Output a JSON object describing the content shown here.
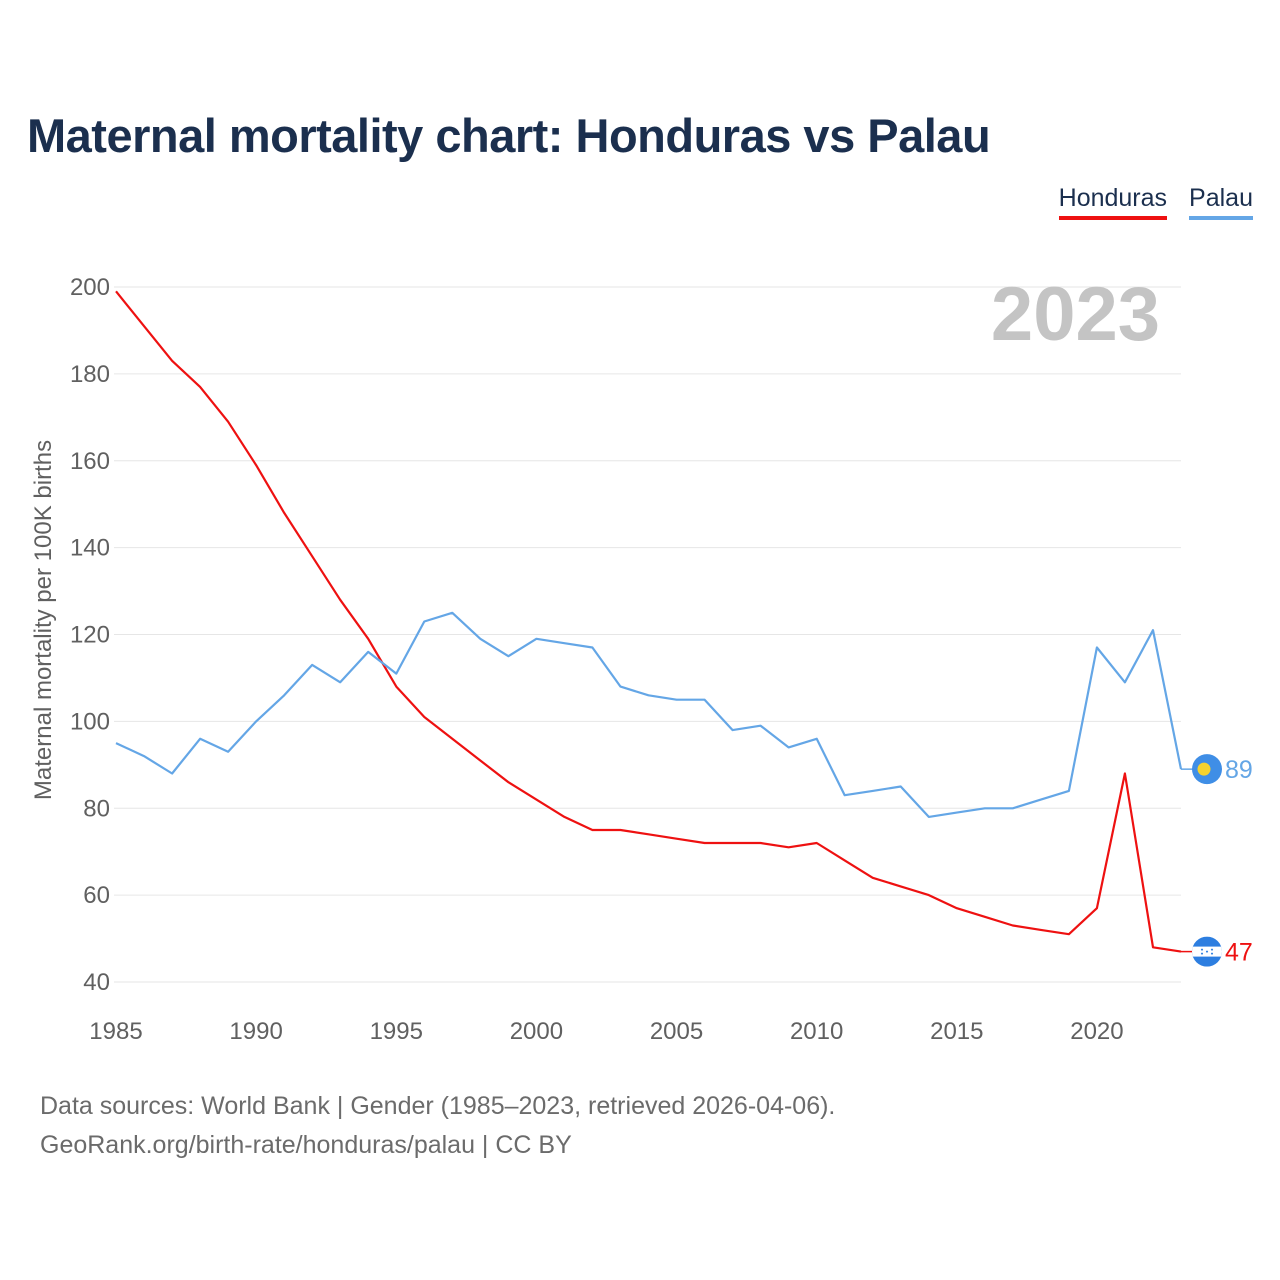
{
  "title": "Maternal mortality chart: Honduras vs Palau",
  "legend": [
    {
      "label": "Honduras",
      "color": "#ee1111"
    },
    {
      "label": "Palau",
      "color": "#64a6e6"
    }
  ],
  "footer": {
    "line1": "Data sources: World Bank | Gender (1985–2023, retrieved 2026-04-06).",
    "line2": "GeoRank.org/birth-rate/honduras/palau | CC BY"
  },
  "chart_data": {
    "type": "line",
    "title": "Maternal mortality chart: Honduras vs Palau",
    "ylabel": "Maternal mortality per 100K births",
    "xlabel": "",
    "year_label": "2023",
    "xlim": [
      1985,
      2023
    ],
    "ylim": [
      40,
      200
    ],
    "xticks": [
      1985,
      1990,
      1995,
      2000,
      2005,
      2010,
      2015,
      2020
    ],
    "yticks": [
      40,
      60,
      80,
      100,
      120,
      140,
      160,
      180,
      200
    ],
    "grid": true,
    "legend_position": "top-right",
    "x": [
      1985,
      1986,
      1987,
      1988,
      1989,
      1990,
      1991,
      1992,
      1993,
      1994,
      1995,
      1996,
      1997,
      1998,
      1999,
      2000,
      2001,
      2002,
      2003,
      2004,
      2005,
      2006,
      2007,
      2008,
      2009,
      2010,
      2011,
      2012,
      2013,
      2014,
      2015,
      2016,
      2017,
      2018,
      2019,
      2020,
      2021,
      2022,
      2023
    ],
    "series": [
      {
        "name": "Honduras",
        "color": "#ee1111",
        "end_label": "47",
        "values": [
          199,
          191,
          183,
          177,
          169,
          159,
          148,
          138,
          128,
          119,
          108,
          101,
          96,
          91,
          86,
          82,
          78,
          75,
          75,
          74,
          73,
          72,
          72,
          72,
          71,
          72,
          68,
          64,
          62,
          60,
          57,
          55,
          53,
          52,
          51,
          57,
          88,
          48,
          47
        ]
      },
      {
        "name": "Palau",
        "color": "#64a6e6",
        "end_label": "89",
        "values": [
          95,
          92,
          88,
          96,
          93,
          100,
          106,
          113,
          109,
          116,
          111,
          123,
          125,
          119,
          115,
          119,
          118,
          117,
          108,
          106,
          105,
          105,
          98,
          99,
          94,
          96,
          83,
          84,
          85,
          78,
          79,
          80,
          80,
          82,
          84,
          117,
          109,
          121,
          89
        ]
      }
    ]
  }
}
